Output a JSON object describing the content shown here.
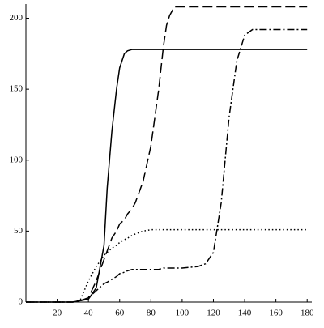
{
  "chart_data": {
    "type": "line",
    "x": [
      0,
      10,
      20,
      30,
      35,
      40,
      45,
      50,
      52,
      55,
      58,
      60,
      63,
      65,
      68,
      70,
      75,
      80,
      85,
      88,
      90,
      92,
      95,
      100,
      110,
      115,
      120,
      125,
      130,
      135,
      140,
      145,
      150,
      160,
      170,
      180
    ],
    "series": [
      {
        "color": "#000000",
        "dash": "solid",
        "values": [
          0,
          0,
          0,
          0,
          1,
          2,
          10,
          40,
          80,
          120,
          150,
          165,
          175,
          177,
          178,
          178,
          178,
          178,
          178,
          178,
          178,
          178,
          178,
          178,
          178,
          178,
          178,
          178,
          178,
          178,
          178,
          178,
          178,
          178,
          178,
          178
        ]
      },
      {
        "color": "#000000",
        "dash": "dashed",
        "values": [
          0,
          0,
          0,
          0,
          1,
          3,
          15,
          30,
          36,
          45,
          50,
          55,
          58,
          62,
          66,
          70,
          85,
          110,
          150,
          180,
          195,
          202,
          208,
          208,
          208,
          208,
          208,
          208,
          208,
          208,
          208,
          208,
          208,
          208,
          208,
          208
        ]
      },
      {
        "color": "#000000",
        "dash": "dotted",
        "values": [
          0,
          0,
          0,
          0,
          2,
          15,
          25,
          33,
          35,
          38,
          40,
          42,
          44,
          45,
          47,
          48,
          50,
          51,
          51,
          51,
          51,
          51,
          51,
          51,
          51,
          51,
          51,
          51,
          51,
          51,
          51,
          51,
          51,
          51,
          51,
          51
        ]
      },
      {
        "color": "#000000",
        "dash": "dashdot",
        "values": [
          0,
          0,
          0,
          0,
          1,
          3,
          8,
          13,
          14,
          16,
          18,
          20,
          21,
          22,
          23,
          23,
          23,
          23,
          23,
          24,
          24,
          24,
          24,
          24,
          25,
          27,
          35,
          70,
          130,
          170,
          188,
          192,
          192,
          192,
          192,
          192
        ]
      }
    ],
    "xlim": [
      0,
      183
    ],
    "ylim": [
      0,
      210
    ],
    "xticks": [
      20,
      40,
      60,
      80,
      100,
      120,
      140,
      160,
      180
    ],
    "yticks": [
      0,
      50,
      100,
      150,
      200
    ]
  }
}
